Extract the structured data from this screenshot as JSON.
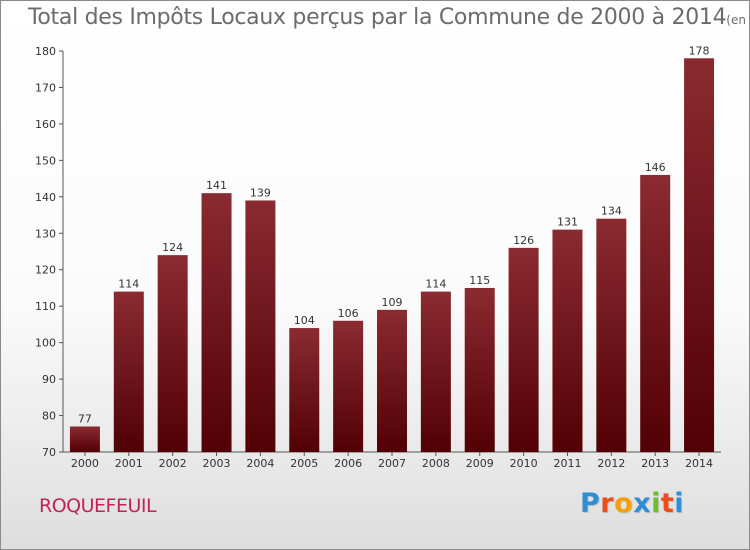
{
  "chart_data": {
    "type": "bar",
    "title": "Total des Impôts Locaux perçus par la Commune de 2000 à 2014",
    "subtitle": "(en milliers d'€)",
    "categories": [
      "2000",
      "2001",
      "2002",
      "2003",
      "2004",
      "2005",
      "2006",
      "2007",
      "2008",
      "2009",
      "2010",
      "2011",
      "2012",
      "2013",
      "2014"
    ],
    "values": [
      77,
      114,
      124,
      141,
      139,
      104,
      106,
      109,
      114,
      115,
      126,
      131,
      134,
      146,
      178
    ],
    "ylim": [
      70,
      180
    ],
    "yticks": [
      70,
      80,
      90,
      100,
      110,
      120,
      130,
      140,
      150,
      160,
      170,
      180
    ],
    "grid": false,
    "bar_color": "#6e1418"
  },
  "commune": "ROQUEFEUIL",
  "logo": {
    "text": "Proxiti",
    "colors": [
      "#2e8fd6",
      "#e94e1b",
      "#f5a000",
      "#2e8fd6",
      "#6cbf2b",
      "#e94e1b",
      "#2e8fd6"
    ]
  }
}
